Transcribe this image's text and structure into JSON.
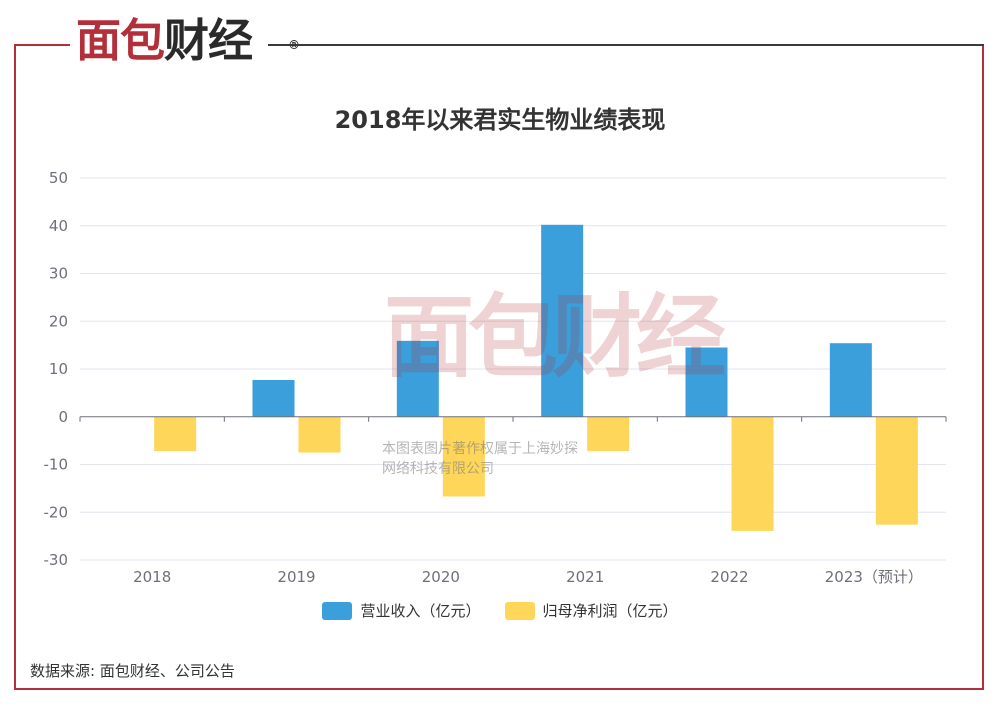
{
  "brand": {
    "logo_red": "面包",
    "logo_dark": "财经",
    "registered_mark": "®"
  },
  "watermark": {
    "line1": "本图表图片著作权属于上海妙探",
    "line2": "网络科技有限公司"
  },
  "source_text": "数据来源: 面包财经、公司公告",
  "colors": {
    "revenue": "#3a9fdb",
    "profit": "#fed65a",
    "frame": "#b3303a",
    "grid": "#e3e6f0",
    "axis": "#6e7079"
  },
  "chart_data": {
    "type": "bar",
    "title": "2018年以来君实生物业绩表现",
    "categories": [
      "2018",
      "2019",
      "2020",
      "2021",
      "2022",
      "2023（预计）"
    ],
    "series": [
      {
        "name": "营业收入（亿元）",
        "values": [
          0,
          7.7,
          15.9,
          40.2,
          14.5,
          15.4
        ]
      },
      {
        "name": "归母净利润（亿元）",
        "values": [
          -7.2,
          -7.5,
          -16.7,
          -7.2,
          -23.9,
          -22.6
        ]
      }
    ],
    "ylim": [
      -30,
      50
    ],
    "yticks": [
      50,
      40,
      30,
      20,
      10,
      0,
      -10,
      -20,
      -30
    ],
    "grid": true,
    "legend_position": "bottom"
  }
}
